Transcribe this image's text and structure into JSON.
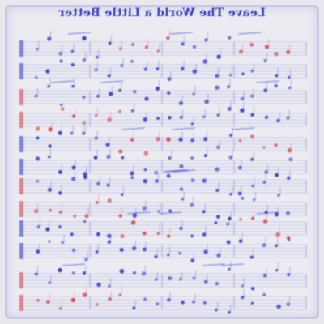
{
  "title": "Leave The World a Little Better",
  "colors": {
    "ink_blue": "#2c35c8",
    "ink_red": "#d43a3a",
    "staff": "#7a7ed8",
    "paper": "#ebebf1"
  },
  "systems": [
    {
      "top": "sys1",
      "tint": "mixed"
    },
    {
      "top": "sys2",
      "tint": "mixed"
    },
    {
      "top": "sys3",
      "tint": "blue"
    },
    {
      "top": "sys4",
      "tint": "mixed"
    },
    {
      "top": "sys5",
      "tint": "blue"
    },
    {
      "top": "sys6",
      "tint": "mixed"
    }
  ]
}
